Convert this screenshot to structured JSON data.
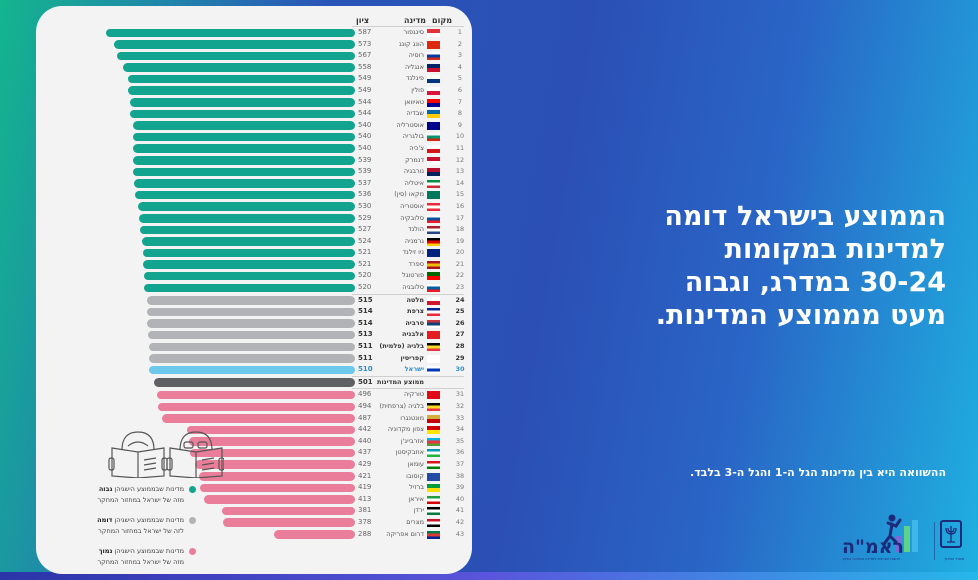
{
  "headline": [
    "הממוצע בישראל דומה",
    "למדינות במקומות",
    "30-24 במדרג, וגבוה",
    "מעט מממוצע המדינות."
  ],
  "note": "ההשוואה היא בין מדינות הגל ה-1 והגל ה-3 בלבד.",
  "table": {
    "headers": {
      "rank": "מקום",
      "country": "מדינה",
      "score": "ציון"
    },
    "average_label": "ממוצע המדינות",
    "average_score": 501
  },
  "legend": [
    {
      "color": "#12a48e",
      "line1_pre": "מדינות שבממוצע הישגיהן ",
      "line1_bold": "גבוה",
      "line2": "מזה של ישראל במחזור המחקר"
    },
    {
      "color": "#b2b3b6",
      "line1_pre": "מדינות שבממוצע הישגיהן ",
      "line1_bold": "דומה",
      "line2": "לזה של ישראל במחזור המחקר"
    },
    {
      "color": "#ea7d99",
      "line1_pre": "מדינות שבממוצע הישגיהן ",
      "line1_bold": "נמוך",
      "line2": "מזה של ישראל במחזור המחקר"
    }
  ],
  "logos": {
    "ramah": "ראמ\"ה",
    "ramah_sub": "הרשות הארצית למדידה והערכה בחינוך",
    "gov_sub": "משרד החינוך"
  },
  "colors": {
    "higher": "#12a48e",
    "similar": "#b2b3b6",
    "israel": "#6cc9ec",
    "average": "#5f6064",
    "lower": "#ea7d99"
  },
  "chart_data": {
    "type": "bar",
    "orientation": "horizontal",
    "title": "",
    "xlabel": "ציון",
    "ylabel": "מדינה",
    "xlim": [
      250,
      600
    ],
    "grid": false,
    "legend_position": "bottom-left",
    "categories": [
      "סינגפור",
      "הונג קונג",
      "רוסיה",
      "אנגליה",
      "פינלנד",
      "פולין",
      "טאיוואן",
      "שבדיה",
      "אוסטרליה",
      "בולגריה",
      "צ'כיה",
      "דנמרק",
      "נורבגיה",
      "איטליה",
      "מקאו (סין)",
      "אוסטריה",
      "סלובקיה",
      "הולנד",
      "גרמניה",
      "ניו זילנד",
      "ספרד",
      "פורטוגל",
      "סלובניה",
      "מלטה",
      "צרפת",
      "סרביה",
      "אלבניה",
      "בלגיה (פלמית)",
      "קפריסין",
      "ישראל",
      "ממוצע המדינות",
      "טורקיה",
      "בלגיה (צרפתית)",
      "מונטנגרו",
      "צפון מקדוניה",
      "אזרבייג'ן",
      "אוזבקיסטן",
      "עומאן",
      "קוסובו",
      "ברזיל",
      "איראן",
      "ירדן",
      "מצרים",
      "דרום אפריקה"
    ],
    "ranks": [
      1,
      2,
      3,
      4,
      5,
      6,
      7,
      8,
      9,
      10,
      11,
      12,
      13,
      14,
      15,
      16,
      17,
      18,
      19,
      20,
      21,
      22,
      23,
      24,
      25,
      26,
      27,
      28,
      29,
      30,
      null,
      31,
      32,
      33,
      34,
      35,
      36,
      37,
      38,
      39,
      40,
      41,
      42,
      43
    ],
    "values": [
      587,
      573,
      567,
      558,
      549,
      549,
      544,
      544,
      540,
      540,
      540,
      539,
      539,
      537,
      536,
      530,
      529,
      527,
      524,
      521,
      521,
      520,
      520,
      515,
      514,
      514,
      513,
      511,
      511,
      510,
      501,
      496,
      494,
      487,
      442,
      440,
      437,
      429,
      421,
      419,
      413,
      381,
      378,
      288
    ],
    "groups": [
      "higher",
      "higher",
      "higher",
      "higher",
      "higher",
      "higher",
      "higher",
      "higher",
      "higher",
      "higher",
      "higher",
      "higher",
      "higher",
      "higher",
      "higher",
      "higher",
      "higher",
      "higher",
      "higher",
      "higher",
      "higher",
      "higher",
      "higher",
      "similar",
      "similar",
      "similar",
      "similar",
      "similar",
      "similar",
      "israel",
      "average",
      "lower",
      "lower",
      "lower",
      "lower",
      "lower",
      "lower",
      "lower",
      "lower",
      "lower",
      "lower",
      "lower",
      "lower",
      "lower"
    ]
  }
}
